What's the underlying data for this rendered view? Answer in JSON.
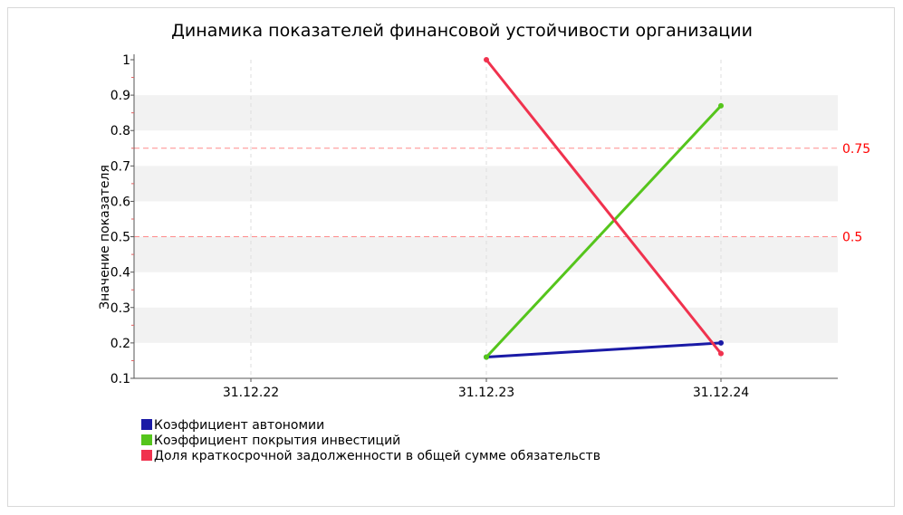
{
  "chart_data": {
    "type": "line",
    "title": "Динамика показателей финансовой устойчивости организации",
    "xlabel": "",
    "ylabel": "Значение показателя",
    "categories": [
      "31.12.22",
      "31.12.23",
      "31.12.24"
    ],
    "ylim": [
      0.1,
      1.0
    ],
    "yticks": [
      "0.1",
      "0.2",
      "0.3",
      "0.4",
      "0.5",
      "0.6",
      "0.7",
      "0.8",
      "0.9",
      "1"
    ],
    "grid": true,
    "legend_position": "bottom-left",
    "reference_lines": [
      {
        "value": 0.75,
        "label": "0.75",
        "color": "#ff0000"
      },
      {
        "value": 0.5,
        "label": "0.5",
        "color": "#ff0000"
      }
    ],
    "series": [
      {
        "name": "Коэффициент автономии",
        "color": "#1a1aa6",
        "values": [
          null,
          0.16,
          0.2
        ]
      },
      {
        "name": "Коэффициент покрытия инвестиций",
        "color": "#55c51c",
        "values": [
          null,
          0.16,
          0.87
        ]
      },
      {
        "name": "Доля краткосрочной задолженности в общей сумме обязательств",
        "color": "#f0324e",
        "values": [
          null,
          1.0,
          0.17
        ]
      }
    ]
  }
}
